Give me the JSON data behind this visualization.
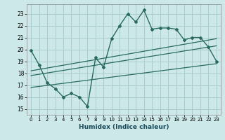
{
  "xlabel": "Humidex (Indice chaleur)",
  "ylabel": "",
  "bg_color": "#cce8e8",
  "grid_color": "#aacccc",
  "line_color": "#2a6a60",
  "x_data": [
    0,
    1,
    2,
    3,
    4,
    5,
    6,
    7,
    8,
    9,
    10,
    11,
    12,
    13,
    14,
    15,
    16,
    17,
    18,
    19,
    20,
    21,
    22,
    23
  ],
  "y_main": [
    19.9,
    18.7,
    17.2,
    16.7,
    16.0,
    16.3,
    16.0,
    15.2,
    19.3,
    18.5,
    20.9,
    22.0,
    23.0,
    22.3,
    23.3,
    21.7,
    21.8,
    21.8,
    21.7,
    20.8,
    21.0,
    21.0,
    20.2,
    19.0
  ],
  "trend1_x": [
    0,
    23
  ],
  "trend1_y": [
    16.8,
    18.8
  ],
  "trend2_x": [
    0,
    23
  ],
  "trend2_y": [
    17.8,
    20.3
  ],
  "trend3_x": [
    0,
    23
  ],
  "trend3_y": [
    18.2,
    20.9
  ],
  "ylim": [
    14.5,
    23.8
  ],
  "xlim": [
    -0.5,
    23.5
  ],
  "yticks": [
    15,
    16,
    17,
    18,
    19,
    20,
    21,
    22,
    23
  ],
  "xticks": [
    0,
    1,
    2,
    3,
    4,
    5,
    6,
    7,
    8,
    9,
    10,
    11,
    12,
    13,
    14,
    15,
    16,
    17,
    18,
    19,
    20,
    21,
    22,
    23
  ]
}
